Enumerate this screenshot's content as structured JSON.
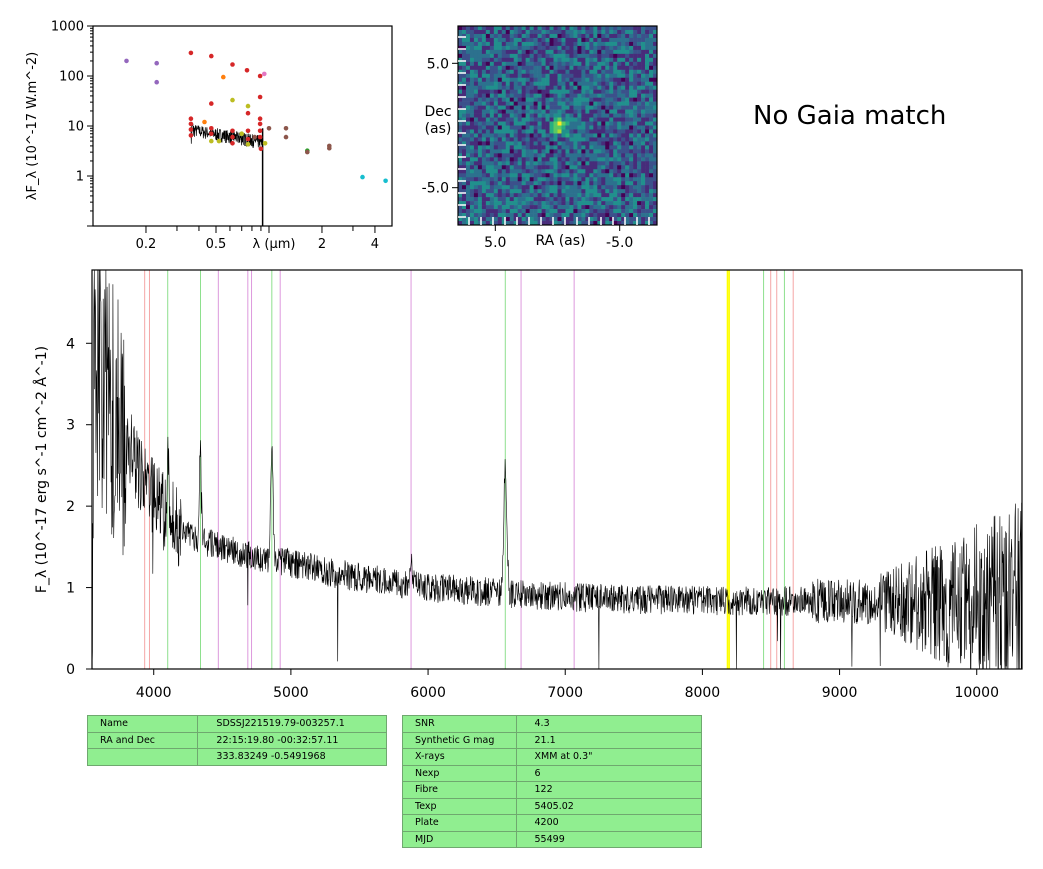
{
  "chart_data": [
    {
      "type": "scatter",
      "ylabel": "λF_λ (10^-17 W.m^-2)",
      "xlabel": "λ (μm)",
      "x_scale": "log",
      "y_scale": "log",
      "xlim": [
        0.1,
        5.0
      ],
      "ylim": [
        0.1,
        1000
      ],
      "x_ticks": [
        {
          "v": 0.2,
          "label": "0.2"
        },
        {
          "v": 0.5,
          "label": "0.5"
        },
        {
          "v": 2,
          "label": "2"
        },
        {
          "v": 4,
          "label": "4"
        }
      ],
      "y_ticks": [
        {
          "v": 1,
          "label": "1"
        },
        {
          "v": 10,
          "label": "10"
        },
        {
          "v": 100,
          "label": "100"
        },
        {
          "v": 1000,
          "label": "1000"
        }
      ],
      "points": [
        {
          "x": 0.155,
          "y": 200,
          "color": "#9467bd"
        },
        {
          "x": 0.23,
          "y": 180,
          "color": "#9467bd"
        },
        {
          "x": 0.23,
          "y": 75,
          "color": "#9467bd"
        },
        {
          "x": 0.36,
          "y": 290,
          "color": "#d62728"
        },
        {
          "x": 0.47,
          "y": 250,
          "color": "#d62728"
        },
        {
          "x": 0.62,
          "y": 170,
          "color": "#d62728"
        },
        {
          "x": 0.75,
          "y": 130,
          "color": "#d62728"
        },
        {
          "x": 0.89,
          "y": 100,
          "color": "#d62728"
        },
        {
          "x": 0.94,
          "y": 110,
          "color": "#e377c2"
        },
        {
          "x": 0.55,
          "y": 95,
          "color": "#ff7f0e"
        },
        {
          "x": 0.47,
          "y": 28,
          "color": "#d62728"
        },
        {
          "x": 0.62,
          "y": 33,
          "color": "#bcbd22"
        },
        {
          "x": 0.76,
          "y": 25,
          "color": "#bcbd22"
        },
        {
          "x": 0.76,
          "y": 18,
          "color": "#d62728"
        },
        {
          "x": 0.89,
          "y": 38,
          "color": "#d62728"
        },
        {
          "x": 0.36,
          "y": 14,
          "color": "#d62728"
        },
        {
          "x": 0.36,
          "y": 11,
          "color": "#d62728"
        },
        {
          "x": 0.36,
          "y": 8.5,
          "color": "#d62728"
        },
        {
          "x": 0.36,
          "y": 6.5,
          "color": "#d62728"
        },
        {
          "x": 0.43,
          "y": 12,
          "color": "#ff7f0e"
        },
        {
          "x": 0.47,
          "y": 9,
          "color": "#d62728"
        },
        {
          "x": 0.47,
          "y": 7,
          "color": "#d62728"
        },
        {
          "x": 0.47,
          "y": 5,
          "color": "#bcbd22"
        },
        {
          "x": 0.52,
          "y": 5,
          "color": "#bcbd22"
        },
        {
          "x": 0.62,
          "y": 8,
          "color": "#d62728"
        },
        {
          "x": 0.62,
          "y": 6,
          "color": "#d62728"
        },
        {
          "x": 0.62,
          "y": 4.5,
          "color": "#d62728"
        },
        {
          "x": 0.7,
          "y": 7,
          "color": "#bcbd22"
        },
        {
          "x": 0.76,
          "y": 8,
          "color": "#d62728"
        },
        {
          "x": 0.76,
          "y": 5.5,
          "color": "#d62728"
        },
        {
          "x": 0.76,
          "y": 4.3,
          "color": "#bcbd22"
        },
        {
          "x": 0.83,
          "y": 6,
          "color": "#8c564b"
        },
        {
          "x": 0.89,
          "y": 14,
          "color": "#d62728"
        },
        {
          "x": 0.89,
          "y": 11,
          "color": "#d62728"
        },
        {
          "x": 0.89,
          "y": 8,
          "color": "#d62728"
        },
        {
          "x": 0.89,
          "y": 6,
          "color": "#d62728"
        },
        {
          "x": 0.9,
          "y": 3.5,
          "color": "#d62728"
        },
        {
          "x": 0.95,
          "y": 4.5,
          "color": "#bcbd22"
        },
        {
          "x": 1.0,
          "y": 9,
          "color": "#8c564b"
        },
        {
          "x": 1.25,
          "y": 9,
          "color": "#8c564b"
        },
        {
          "x": 1.25,
          "y": 6,
          "color": "#8c564b"
        },
        {
          "x": 1.65,
          "y": 3.2,
          "color": "#2ca02c"
        },
        {
          "x": 1.65,
          "y": 3.0,
          "color": "#8c564b"
        },
        {
          "x": 2.2,
          "y": 4.0,
          "color": "#8c564b"
        },
        {
          "x": 2.2,
          "y": 3.6,
          "color": "#8c564b"
        },
        {
          "x": 3.4,
          "y": 0.95,
          "color": "#17becf"
        },
        {
          "x": 4.6,
          "y": 0.8,
          "color": "#17becf"
        }
      ]
    },
    {
      "type": "heatmap",
      "xlabel": "RA (as)",
      "ylabel": "Dec\n(as)",
      "x_ticks": [
        {
          "v": 5.0,
          "label": "5.0"
        },
        {
          "v": -5.0,
          "label": "-5.0"
        }
      ],
      "y_ticks": [
        {
          "v": 5.0,
          "label": "5.0"
        },
        {
          "v": -5.0,
          "label": "-5.0"
        }
      ],
      "xlim": [
        8,
        -8
      ],
      "ylim": [
        -8,
        8
      ],
      "colormap": "viridis",
      "source_center": [
        0.0,
        0.0
      ]
    },
    {
      "type": "line",
      "xlabel": "",
      "ylabel": "F_λ (10^-17 erg s^-1 cm^-2 Å^-1)",
      "xlim": [
        3550,
        10330
      ],
      "ylim": [
        0,
        4.9
      ],
      "x_ticks": [
        4000,
        5000,
        6000,
        7000,
        8000,
        9000,
        10000
      ],
      "y_ticks": [
        0,
        1,
        2,
        3,
        4
      ],
      "continuum": [
        [
          3560,
          3.8
        ],
        [
          3700,
          3.2
        ],
        [
          3900,
          2.4
        ],
        [
          4100,
          1.85
        ],
        [
          4300,
          1.6
        ],
        [
          4500,
          1.5
        ],
        [
          4700,
          1.4
        ],
        [
          5000,
          1.3
        ],
        [
          5300,
          1.18
        ],
        [
          5600,
          1.1
        ],
        [
          6000,
          1.0
        ],
        [
          6400,
          0.95
        ],
        [
          6800,
          0.9
        ],
        [
          7200,
          0.87
        ],
        [
          7600,
          0.85
        ],
        [
          8000,
          0.84
        ],
        [
          8500,
          0.83
        ],
        [
          9000,
          0.83
        ],
        [
          9500,
          0.82
        ],
        [
          10000,
          0.8
        ],
        [
          10330,
          0.8
        ]
      ],
      "emission": [
        {
          "center": 4102,
          "amp": 0.9,
          "width": 6
        },
        {
          "center": 4341,
          "amp": 1.2,
          "width": 7
        },
        {
          "center": 4861,
          "amp": 1.4,
          "width": 9
        },
        {
          "center": 5876,
          "amp": 0.4,
          "width": 8
        },
        {
          "center": 6563,
          "amp": 1.55,
          "width": 11
        }
      ],
      "lines": [
        {
          "x": 3934,
          "color": "#f4a6a6"
        },
        {
          "x": 3969,
          "color": "#f4a6a6"
        },
        {
          "x": 4102,
          "color": "#8ee08e"
        },
        {
          "x": 4341,
          "color": "#8ee08e"
        },
        {
          "x": 4471,
          "color": "#dd99dd"
        },
        {
          "x": 4686,
          "color": "#dd99dd"
        },
        {
          "x": 4713,
          "color": "#dd99dd"
        },
        {
          "x": 4861,
          "color": "#8ee08e"
        },
        {
          "x": 4922,
          "color": "#dd99dd"
        },
        {
          "x": 5876,
          "color": "#dd99dd"
        },
        {
          "x": 6563,
          "color": "#8ee08e"
        },
        {
          "x": 6678,
          "color": "#dd99dd"
        },
        {
          "x": 7065,
          "color": "#dd99dd"
        },
        {
          "x": 8183,
          "color": "#ffff00"
        },
        {
          "x": 8195,
          "color": "#ffff00"
        },
        {
          "x": 8446,
          "color": "#8ee08e"
        },
        {
          "x": 8498,
          "color": "#f4a6a6"
        },
        {
          "x": 8542,
          "color": "#f4a6a6"
        },
        {
          "x": 8598,
          "color": "#8ee08e"
        },
        {
          "x": 8662,
          "color": "#f4a6a6"
        }
      ]
    }
  ],
  "gaia_text": "No Gaia match",
  "table_left": [
    [
      "Name",
      "SDSSJ221519.79-003257.1"
    ],
    [
      "RA and Dec",
      "22:15:19.80    -00:32:57.11"
    ],
    [
      "",
      "333.83249    -0.5491968"
    ]
  ],
  "table_right": [
    [
      "SNR",
      "4.3"
    ],
    [
      "Synthetic G mag",
      "21.1"
    ],
    [
      "X-rays",
      "XMM at 0.3\""
    ],
    [
      "Nexp",
      "6"
    ],
    [
      "Fibre",
      "122"
    ],
    [
      "Texp",
      "5405.02"
    ],
    [
      "Plate",
      "4200"
    ],
    [
      "MJD",
      "55499"
    ]
  ]
}
